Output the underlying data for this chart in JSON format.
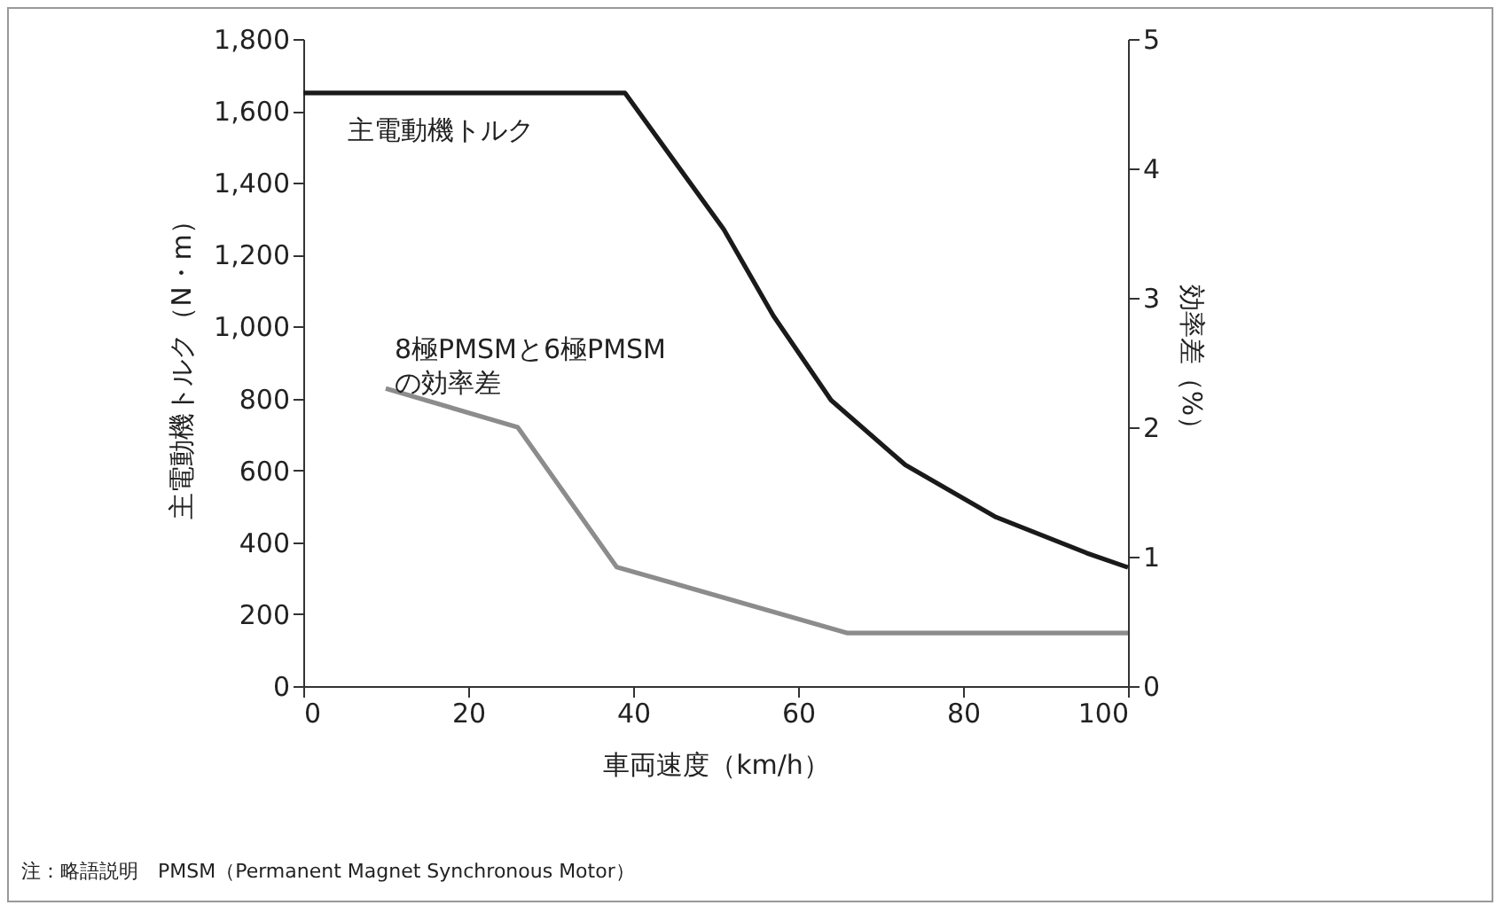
{
  "chart_data": {
    "type": "line",
    "xlabel": "車両速度（km/h）",
    "ylabel": "主電動機トルク（N・m）",
    "y2label": "効率差（%）",
    "xlim": [
      0,
      100
    ],
    "xticks": [
      0,
      20,
      40,
      60,
      80,
      100
    ],
    "ylim": [
      0,
      1800
    ],
    "yticks": [
      0,
      200,
      400,
      600,
      800,
      {
        "value": 1000,
        "label": "1,000"
      },
      {
        "value": 1200,
        "label": "1,200"
      },
      {
        "value": 1400,
        "label": "1,400"
      },
      {
        "value": 1600,
        "label": "1,600"
      },
      {
        "value": 1800,
        "label": "1,800"
      }
    ],
    "y2lim": [
      0,
      5
    ],
    "y2ticks": [
      0,
      1,
      2,
      3,
      4,
      5
    ],
    "grid": false,
    "series": [
      {
        "name": "主電動機トルク",
        "color": "#1a1a1a",
        "x": [
          0,
          39,
          51,
          57,
          64,
          73,
          84,
          95,
          100
        ],
        "values": [
          1650,
          1650,
          1270,
          1030,
          795,
          615,
          470,
          370,
          330
        ]
      },
      {
        "name": "8極PMSMと6極PMSM\nの効率差",
        "color": "#8c8c8c",
        "axis": "y2",
        "x": [
          10,
          26,
          38,
          66,
          100
        ],
        "values": [
          2.3,
          2.0,
          0.92,
          0.41,
          0.41
        ]
      }
    ],
    "annotations": [
      "注：略語説明　PMSM（Permanent Magnet Synchronous Motor）"
    ]
  }
}
